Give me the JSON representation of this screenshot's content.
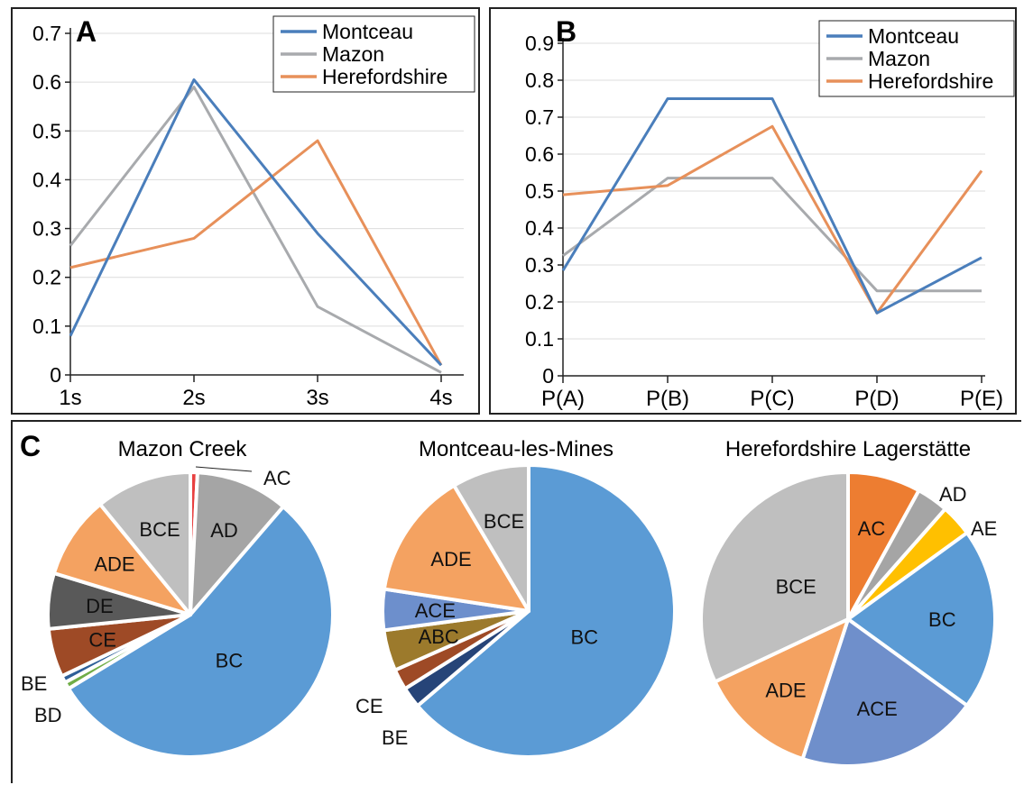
{
  "chart_data": [
    {
      "type": "line",
      "panel_label": "A",
      "categories": [
        "1s",
        "2s",
        "3s",
        "4s"
      ],
      "yticks": [
        "0",
        "0.1",
        "0.2",
        "0.3",
        "0.4",
        "0.5",
        "0.6",
        "0.7"
      ],
      "ylim": [
        0,
        0.7
      ],
      "legend_position": "top-right",
      "grid": true,
      "series": [
        {
          "name": "Montceau",
          "color": "#4a7ebb",
          "values": [
            0.08,
            0.605,
            0.29,
            0.02
          ]
        },
        {
          "name": "Mazon",
          "color": "#a8aaad",
          "values": [
            0.265,
            0.59,
            0.14,
            0.005
          ]
        },
        {
          "name": "Herefordshire",
          "color": "#e7905a",
          "values": [
            0.22,
            0.28,
            0.48,
            0.02
          ]
        }
      ]
    },
    {
      "type": "line",
      "panel_label": "B",
      "categories": [
        "P(A)",
        "P(B)",
        "P(C)",
        "P(D)",
        "P(E)"
      ],
      "yticks": [
        "0",
        "0.1",
        "0.2",
        "0.3",
        "0.4",
        "0.5",
        "0.6",
        "0.7",
        "0.8",
        "0.9"
      ],
      "ylim": [
        0,
        0.9
      ],
      "legend_position": "top-right",
      "grid": true,
      "series": [
        {
          "name": "Montceau",
          "color": "#4a7ebb",
          "values": [
            0.285,
            0.75,
            0.75,
            0.17,
            0.32
          ]
        },
        {
          "name": "Mazon",
          "color": "#a8aaad",
          "values": [
            0.325,
            0.535,
            0.535,
            0.23,
            0.23
          ]
        },
        {
          "name": "Herefordshire",
          "color": "#e7905a",
          "values": [
            0.49,
            0.515,
            0.675,
            0.17,
            0.555
          ]
        }
      ]
    },
    {
      "type": "pie",
      "panel_label": "C",
      "title": "Mazon Creek",
      "slices": [
        {
          "label": "AC",
          "value": 0.8,
          "color": "#e84040",
          "text_color": "#111111",
          "label_outside": true
        },
        {
          "label": "AD",
          "value": 10.5,
          "color": "#a5a5a5",
          "text_color": "#111111"
        },
        {
          "label": "BC",
          "value": 55.0,
          "color": "#5b9bd5",
          "text_color": "#111111"
        },
        {
          "label": "BD",
          "value": 0.8,
          "color": "#70ad47",
          "text_color": "#111111",
          "label_outside": true
        },
        {
          "label": "BE",
          "value": 0.8,
          "color": "#2e5f98",
          "text_color": "#111111",
          "label_outside": true
        },
        {
          "label": "CE",
          "value": 5.5,
          "color": "#9e4a26",
          "text_color": "#111111"
        },
        {
          "label": "DE",
          "value": 6.3,
          "color": "#595959",
          "text_color": "#111111"
        },
        {
          "label": "ADE",
          "value": 9.4,
          "color": "#f4a261",
          "text_color": "#111111"
        },
        {
          "label": "BCE",
          "value": 10.9,
          "color": "#bfbfbf",
          "text_color": "#111111"
        }
      ]
    },
    {
      "type": "pie",
      "title": "Montceau-les-Mines",
      "slices": [
        {
          "label": "BC",
          "value": 63.5,
          "color": "#5b9bd5",
          "text_color": "#111111"
        },
        {
          "label": "BE",
          "value": 2.3,
          "color": "#264478",
          "text_color": "#111111",
          "label_outside": true
        },
        {
          "label": "CE",
          "value": 2.3,
          "color": "#9e4a26",
          "text_color": "#111111",
          "label_outside": true
        },
        {
          "label": "ABC",
          "value": 4.5,
          "color": "#9c7a2c",
          "text_color": "#111111"
        },
        {
          "label": "ACE",
          "value": 4.5,
          "color": "#6d8fcc",
          "text_color": "#111111"
        },
        {
          "label": "ADE",
          "value": 14.0,
          "color": "#f4a261",
          "text_color": "#111111"
        },
        {
          "label": "BCE",
          "value": 8.5,
          "color": "#bfbfbf",
          "text_color": "#111111"
        }
      ]
    },
    {
      "type": "pie",
      "title": "Herefordshire Lagerstätte",
      "slices": [
        {
          "label": "AC",
          "value": 8.0,
          "color": "#ed7d31",
          "text_color": "#111111"
        },
        {
          "label": "AD",
          "value": 3.5,
          "color": "#a5a5a5",
          "text_color": "#111111",
          "label_outside": true
        },
        {
          "label": "AE",
          "value": 3.5,
          "color": "#ffc000",
          "text_color": "#111111",
          "label_outside": true
        },
        {
          "label": "BC",
          "value": 20.0,
          "color": "#5b9bd5",
          "text_color": "#111111"
        },
        {
          "label": "ACE",
          "value": 20.0,
          "color": "#6f8fcb",
          "text_color": "#111111"
        },
        {
          "label": "ADE",
          "value": 13.0,
          "color": "#f4a261",
          "text_color": "#111111"
        },
        {
          "label": "BCE",
          "value": 32.0,
          "color": "#bfbfbf",
          "text_color": "#111111"
        }
      ]
    }
  ]
}
